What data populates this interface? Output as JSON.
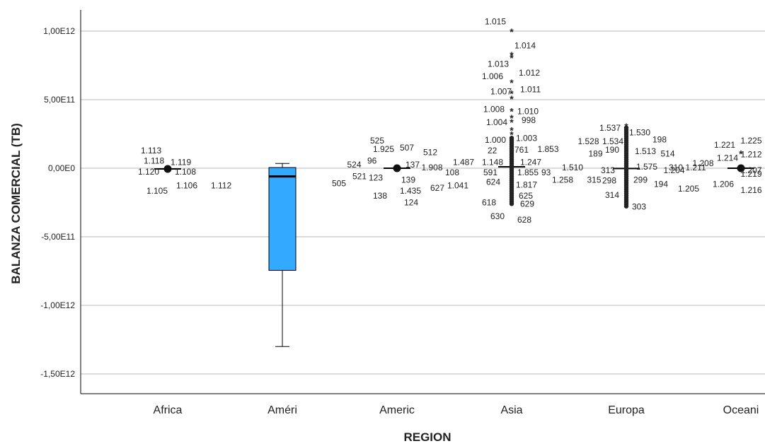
{
  "chart_data": {
    "type": "boxplot",
    "xlabel": "REGION",
    "ylabel": "BALANZA COMERCIAL (TB)",
    "ylim": [
      -1600000000000.0,
      1200000000000.0
    ],
    "y_ticks": [
      {
        "value": 1000000000000.0,
        "label": "1,00E12"
      },
      {
        "value": 500000000000.0,
        "label": "5,00E11"
      },
      {
        "value": 0,
        "label": "0,00E0"
      },
      {
        "value": -500000000000.0,
        "label": "-5,00E11"
      },
      {
        "value": -1000000000000.0,
        "label": "-1,00E12"
      },
      {
        "value": -1500000000000.0,
        "label": "-1,50E12"
      }
    ],
    "grid": true,
    "categories": [
      "Africa",
      "Améri",
      "Americ",
      "Asia",
      "Europa",
      "Oceani"
    ],
    "box_color": "#33aaff",
    "boxes": [
      {
        "category": "Africa",
        "min": -10000000000.0,
        "q1": -6000000000.0,
        "median": -5000000000.0,
        "q3": -3000000000.0,
        "max": 1000000000.0
      },
      {
        "category": "Améri",
        "min": -1300000000000.0,
        "q1": -745000000000.0,
        "median": -60000000000.0,
        "q3": 5000000000.0,
        "max": 35000000000.0
      },
      {
        "category": "Americ",
        "min": -10000000000.0,
        "q1": -4000000000.0,
        "median": 0,
        "q3": 3000000000.0,
        "max": 10000000000.0
      },
      {
        "category": "Asia",
        "min": -100000000000.0,
        "q1": -4000000000.0,
        "median": 10000000000.0,
        "q3": 20000000000.0,
        "max": 150000000000.0
      },
      {
        "category": "Europa",
        "min": -20000000000.0,
        "q1": -3000000000.0,
        "median": -2000000000.0,
        "q3": 2000000000.0,
        "max": 15000000000.0
      },
      {
        "category": "Oceani",
        "min": -8000000000.0,
        "q1": -2000000000.0,
        "median": 0,
        "q3": 2000000000.0,
        "max": 8000000000.0
      }
    ],
    "outlier_labels": [
      {
        "category": "Africa",
        "labels": [
          {
            "text": "1.113",
            "y": 130000000000.0
          },
          {
            "text": "1.119",
            "y": 45000000000.0
          },
          {
            "text": "1.118",
            "y": 55000000000.0
          },
          {
            "text": "1.108",
            "y": -25000000000.0
          },
          {
            "text": "1.120",
            "y": -25000000000.0
          },
          {
            "text": "1.106",
            "y": -125000000000.0
          },
          {
            "text": "1.105",
            "y": -165000000000.0
          },
          {
            "text": "1.112",
            "y": -125000000000.0
          }
        ]
      },
      {
        "category": "Americ",
        "labels": [
          {
            "text": "525",
            "y": 200000000000.0
          },
          {
            "text": "507",
            "y": 150000000000.0
          },
          {
            "text": "1.925",
            "y": 140000000000.0
          },
          {
            "text": "512",
            "y": 115000000000.0
          },
          {
            "text": "96",
            "y": 55000000000.0
          },
          {
            "text": "137",
            "y": 25000000000.0
          },
          {
            "text": "524",
            "y": 25000000000.0
          },
          {
            "text": "1.908",
            "y": 5000000000.0
          },
          {
            "text": "123",
            "y": -70000000000.0
          },
          {
            "text": "108",
            "y": -30000000000.0
          },
          {
            "text": "521",
            "y": -60000000000.0
          },
          {
            "text": "139",
            "y": -85000000000.0
          },
          {
            "text": "505",
            "y": -110000000000.0
          },
          {
            "text": "1.435",
            "y": -165000000000.0
          },
          {
            "text": "138",
            "y": -200000000000.0
          },
          {
            "text": "124",
            "y": -250000000000.0
          }
        ]
      },
      {
        "category": "Asia",
        "labels": [
          {
            "text": "1.015",
            "y": 1070000000000.0
          },
          {
            "text": "1.014",
            "y": 895000000000.0
          },
          {
            "text": "1.013",
            "y": 760000000000.0
          },
          {
            "text": "1.012",
            "y": 695000000000.0
          },
          {
            "text": "1.006",
            "y": 670000000000.0
          },
          {
            "text": "1.011",
            "y": 575000000000.0
          },
          {
            "text": "1.007",
            "y": 560000000000.0
          },
          {
            "text": "1.010",
            "y": 415000000000.0
          },
          {
            "text": "1.008",
            "y": 430000000000.0
          },
          {
            "text": "998",
            "y": 350000000000.0
          },
          {
            "text": "1.004",
            "y": 335000000000.0
          },
          {
            "text": "1.003",
            "y": 220000000000.0
          },
          {
            "text": "1.000",
            "y": 205000000000.0
          },
          {
            "text": "761",
            "y": 135000000000.0
          },
          {
            "text": "22",
            "y": 130000000000.0
          },
          {
            "text": "1.853",
            "y": 140000000000.0
          },
          {
            "text": "1.148",
            "y": 45000000000.0
          },
          {
            "text": "1.247",
            "y": 45000000000.0
          },
          {
            "text": "1.487",
            "y": 45000000000.0
          },
          {
            "text": "1.855",
            "y": -30000000000.0
          },
          {
            "text": "591",
            "y": -30000000000.0
          },
          {
            "text": "93",
            "y": -30000000000.0
          },
          {
            "text": "624",
            "y": -100000000000.0
          },
          {
            "text": "1.817",
            "y": -120000000000.0
          },
          {
            "text": "1.041",
            "y": -125000000000.0
          },
          {
            "text": "1.258",
            "y": -85000000000.0
          },
          {
            "text": "627",
            "y": -145000000000.0
          },
          {
            "text": "625",
            "y": -200000000000.0
          },
          {
            "text": "618",
            "y": -250000000000.0
          },
          {
            "text": "629",
            "y": -260000000000.0
          },
          {
            "text": "630",
            "y": -350000000000.0
          },
          {
            "text": "628",
            "y": -375000000000.0
          }
        ]
      },
      {
        "category": "Europa",
        "labels": [
          {
            "text": "1.537",
            "y": 295000000000.0
          },
          {
            "text": "1.530",
            "y": 260000000000.0
          },
          {
            "text": "1.534",
            "y": 195000000000.0
          },
          {
            "text": "198",
            "y": 210000000000.0
          },
          {
            "text": "1.528",
            "y": 195000000000.0
          },
          {
            "text": "1.513",
            "y": 125000000000.0
          },
          {
            "text": "190",
            "y": 135000000000.0
          },
          {
            "text": "514",
            "y": 105000000000.0
          },
          {
            "text": "189",
            "y": 105000000000.0
          },
          {
            "text": "1.575",
            "y": 10000000000.0
          },
          {
            "text": "313",
            "y": -15000000000.0
          },
          {
            "text": "310",
            "y": 5000000000.0
          },
          {
            "text": "1.510",
            "y": 5000000000.0
          },
          {
            "text": "1.211",
            "y": 5000000000.0
          },
          {
            "text": "298",
            "y": -90000000000.0
          },
          {
            "text": "299",
            "y": -85000000000.0
          },
          {
            "text": "315",
            "y": -85000000000.0
          },
          {
            "text": "194",
            "y": -115000000000.0
          },
          {
            "text": "314",
            "y": -195000000000.0
          },
          {
            "text": "303",
            "y": -280000000000.0
          }
        ]
      },
      {
        "category": "Oceani",
        "labels": [
          {
            "text": "1.221",
            "y": 170000000000.0
          },
          {
            "text": "1.225",
            "y": 200000000000.0
          },
          {
            "text": "1.214",
            "y": 75000000000.0
          },
          {
            "text": "1.212",
            "y": 100000000000.0
          },
          {
            "text": "1.208",
            "y": 35000000000.0
          },
          {
            "text": "1.207",
            "y": -15000000000.0
          },
          {
            "text": "1.204",
            "y": -15000000000.0
          },
          {
            "text": "1.219",
            "y": -40000000000.0
          },
          {
            "text": "1.206",
            "y": -115000000000.0
          },
          {
            "text": "1.216",
            "y": -160000000000.0
          },
          {
            "text": "1.205",
            "y": -150000000000.0
          }
        ]
      }
    ],
    "extreme_points": [
      {
        "category": "Asia",
        "y": 1000000000000.0
      },
      {
        "category": "Asia",
        "y": 830000000000.0
      },
      {
        "category": "Asia",
        "y": 810000000000.0
      },
      {
        "category": "Asia",
        "y": 630000000000.0
      },
      {
        "category": "Asia",
        "y": 550000000000.0
      },
      {
        "category": "Asia",
        "y": 510000000000.0
      },
      {
        "category": "Asia",
        "y": 420000000000.0
      },
      {
        "category": "Asia",
        "y": 370000000000.0
      },
      {
        "category": "Asia",
        "y": 340000000000.0
      },
      {
        "category": "Asia",
        "y": 280000000000.0
      },
      {
        "category": "Asia",
        "y": 250000000000.0
      },
      {
        "category": "Asia",
        "y": 220000000000.0
      },
      {
        "category": "Asia",
        "y": -260000000000.0
      },
      {
        "category": "Europa",
        "y": 310000000000.0
      },
      {
        "category": "Oceani",
        "y": 110000000000.0
      }
    ]
  }
}
